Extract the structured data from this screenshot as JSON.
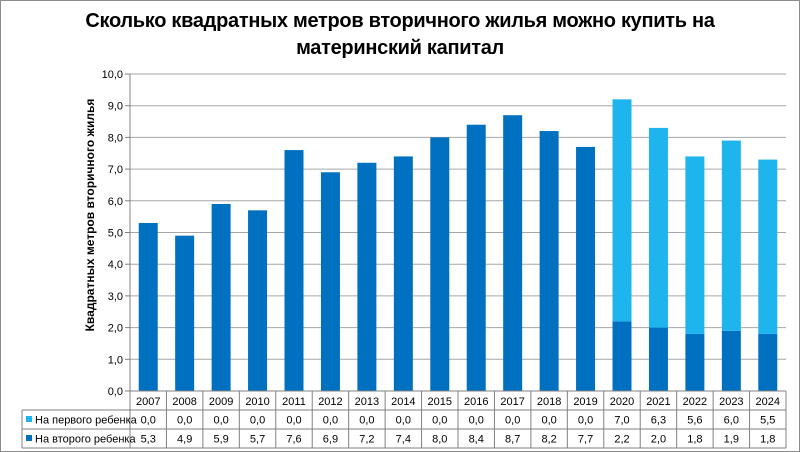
{
  "chart_data": {
    "type": "bar",
    "stacked": true,
    "title_lines": [
      "Сколько квадратных метров вторичного жилья можно купить на",
      "материнский капитал"
    ],
    "ylabel": "Квадратных метров вторичного жилья",
    "ylim": [
      0,
      10
    ],
    "yticks": [
      "0,0",
      "1,0",
      "2,0",
      "3,0",
      "4,0",
      "5,0",
      "6,0",
      "7,0",
      "8,0",
      "9,0",
      "10,0"
    ],
    "categories": [
      "2007",
      "2008",
      "2009",
      "2010",
      "2011",
      "2012",
      "2013",
      "2014",
      "2015",
      "2016",
      "2017",
      "2018",
      "2019",
      "2020",
      "2021",
      "2022",
      "2023",
      "2024"
    ],
    "series": [
      {
        "name": "На второго ребенка",
        "color": "#0070c0",
        "values": [
          5.3,
          4.9,
          5.9,
          5.7,
          7.6,
          6.9,
          7.2,
          7.4,
          8.0,
          8.4,
          8.7,
          8.2,
          7.7,
          2.2,
          2.0,
          1.8,
          1.9,
          1.8
        ],
        "labels": [
          "5,3",
          "4,9",
          "5,9",
          "5,7",
          "7,6",
          "6,9",
          "7,2",
          "7,4",
          "8,0",
          "8,4",
          "8,7",
          "8,2",
          "7,7",
          "2,2",
          "2,0",
          "1,8",
          "1,9",
          "1,8"
        ]
      },
      {
        "name": "На первого ребенка",
        "color": "#1eb4ee",
        "values": [
          0,
          0,
          0,
          0,
          0,
          0,
          0,
          0,
          0,
          0,
          0,
          0,
          0,
          7.0,
          6.3,
          5.6,
          6.0,
          5.5
        ],
        "labels": [
          "0,0",
          "0,0",
          "0,0",
          "0,0",
          "0,0",
          "0,0",
          "0,0",
          "0,0",
          "0,0",
          "0,0",
          "0,0",
          "0,0",
          "0,0",
          "7,0",
          "6,3",
          "5,6",
          "6,0",
          "5,5"
        ]
      }
    ],
    "table_row_order": [
      "На первого ребенка",
      "На второго ребенка"
    ],
    "grid": true,
    "legend": "data-table"
  }
}
